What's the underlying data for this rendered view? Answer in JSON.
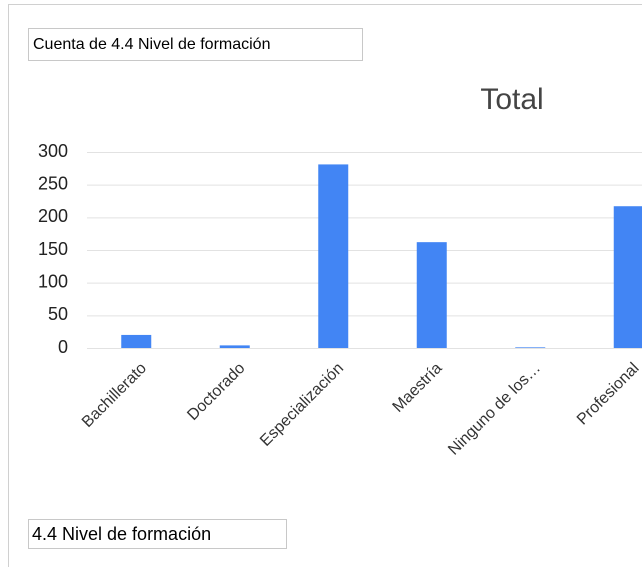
{
  "chart_data": {
    "type": "bar",
    "field_button": "Cuenta de 4.4 Nivel de formación",
    "title": "Total",
    "axis_field_button": "4.4 Nivel de formación",
    "categories": [
      "Bachillerato",
      "Doctorado",
      "Especialización",
      "Maestría",
      "Ninguno de los…",
      "Profesional"
    ],
    "values": [
      20,
      4,
      281,
      162,
      1,
      217
    ],
    "color": "#4285f4",
    "ylim": [
      0,
      300
    ],
    "yticks": [
      0,
      50,
      100,
      150,
      200,
      250,
      300
    ],
    "grid": true
  }
}
